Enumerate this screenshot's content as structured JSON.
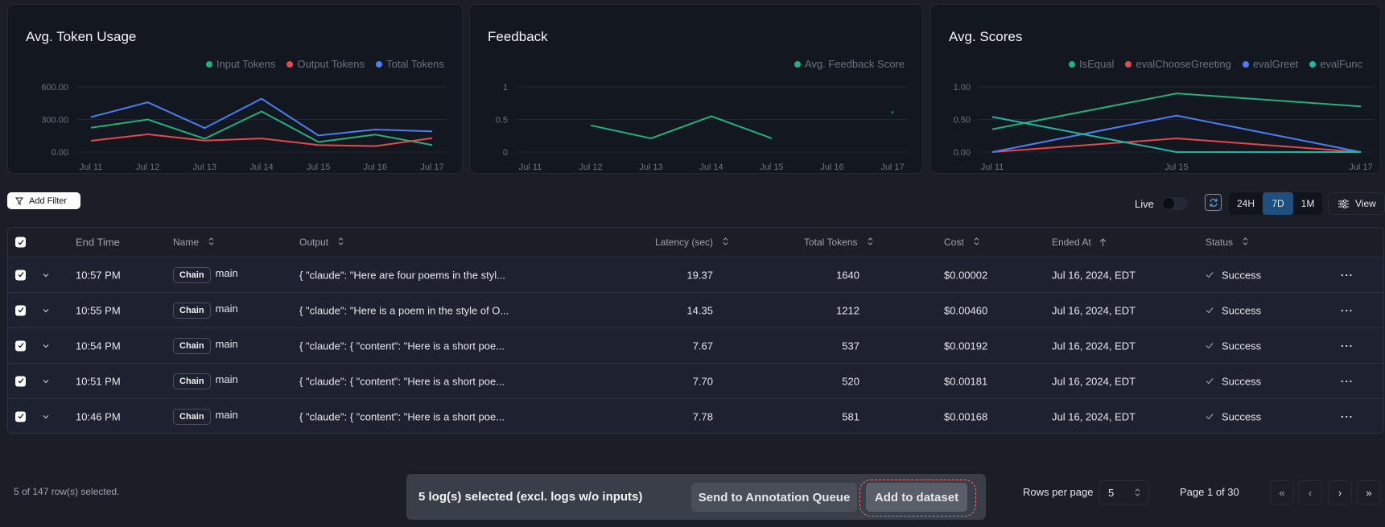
{
  "charts_panel": {
    "token_title": "Avg. Token Usage",
    "feedback_title": "Feedback",
    "scores_title": "Avg. Scores"
  },
  "chart_data": [
    {
      "type": "line",
      "title": "Avg. Token Usage",
      "categories": [
        "Jul 11",
        "Jul 12",
        "Jul 13",
        "Jul 14",
        "Jul 15",
        "Jul 16",
        "Jul 17"
      ],
      "yticks": [
        "0.00",
        "300.00",
        "600.00"
      ],
      "ylim": [
        0,
        600
      ],
      "legend": "top-right",
      "series": [
        {
          "name": "Input Tokens",
          "color": "#22b07d",
          "values": [
            224,
            300,
            123,
            374,
            93,
            161,
            65
          ]
        },
        {
          "name": "Output Tokens",
          "color": "#e5484d",
          "values": [
            104,
            164,
            106,
            125,
            65,
            55,
            128
          ]
        },
        {
          "name": "Total Tokens",
          "color": "#4c7ef3",
          "values": [
            322,
            458,
            221,
            491,
            153,
            207,
            191
          ]
        }
      ]
    },
    {
      "type": "line",
      "title": "Feedback",
      "categories": [
        "Jul 11",
        "Jul 12",
        "Jul 13",
        "Jul 14",
        "Jul 15",
        "Jul 16",
        "Jul 17"
      ],
      "yticks": [
        "0",
        "0.5",
        "1"
      ],
      "ylim": [
        0,
        1
      ],
      "legend": "top-right",
      "series": [
        {
          "name": "Avg. Feedback Score",
          "color": "#22b07d",
          "values": [
            null,
            0.41,
            0.21,
            0.55,
            0.21,
            null,
            0.61
          ]
        }
      ]
    },
    {
      "type": "line",
      "title": "Avg. Scores",
      "categories": [
        "Jul 11",
        "Jul 15",
        "Jul 17"
      ],
      "yticks": [
        "0.00",
        "0.50",
        "1.00"
      ],
      "ylim": [
        0,
        1
      ],
      "legend": "top-right",
      "series": [
        {
          "name": "IsEqual",
          "color": "#22b07d",
          "values": [
            0.35,
            0.9,
            0.7
          ]
        },
        {
          "name": "evalChooseGreeting",
          "color": "#e5484d",
          "values": [
            0,
            0.21,
            0
          ]
        },
        {
          "name": "evalGreet",
          "color": "#4c7ef3",
          "values": [
            0,
            0.56,
            0
          ]
        },
        {
          "name": "evalFunc",
          "color": "#1fb5a0",
          "values": [
            0.54,
            0,
            0
          ]
        }
      ]
    }
  ],
  "toolbar": {
    "add_filter": "Add Filter",
    "live_label": "Live",
    "live_on": false,
    "ranges": [
      "24H",
      "7D",
      "1M"
    ],
    "active_range": "7D",
    "view_label": "View"
  },
  "table": {
    "headers": {
      "end_time": "End Time",
      "name": "Name",
      "output": "Output",
      "latency": "Latency (sec)",
      "tokens": "Total Tokens",
      "cost": "Cost",
      "ended_at": "Ended At",
      "status": "Status"
    },
    "rows": [
      {
        "end_time": "10:57 PM",
        "type": "Chain",
        "name": "main",
        "output": "{ \"claude\": \"Here are four poems in the styl...",
        "latency": "19.37",
        "tokens": "1640",
        "cost": "$0.00002",
        "ended_at": "Jul 16, 2024, EDT",
        "status": "Success"
      },
      {
        "end_time": "10:55 PM",
        "type": "Chain",
        "name": "main",
        "output": "{ \"claude\": \"Here is a poem in the style of O...",
        "latency": "14.35",
        "tokens": "1212",
        "cost": "$0.00460",
        "ended_at": "Jul 16, 2024, EDT",
        "status": "Success"
      },
      {
        "end_time": "10:54 PM",
        "type": "Chain",
        "name": "main",
        "output": "{ \"claude\": { \"content\": \"Here is a short poe...",
        "latency": "7.67",
        "tokens": "537",
        "cost": "$0.00192",
        "ended_at": "Jul 16, 2024, EDT",
        "status": "Success"
      },
      {
        "end_time": "10:51 PM",
        "type": "Chain",
        "name": "main",
        "output": "{ \"claude\": { \"content\": \"Here is a short poe...",
        "latency": "7.70",
        "tokens": "520",
        "cost": "$0.00181",
        "ended_at": "Jul 16, 2024, EDT",
        "status": "Success"
      },
      {
        "end_time": "10:46 PM",
        "type": "Chain",
        "name": "main",
        "output": "{ \"claude\": { \"content\": \"Here is a short poe...",
        "latency": "7.78",
        "tokens": "581",
        "cost": "$0.00168",
        "ended_at": "Jul 16, 2024, EDT",
        "status": "Success"
      }
    ]
  },
  "footer": {
    "selected_count": "5 of 147 row(s) selected.",
    "selection_text": "5 log(s) selected (excl. logs w/o inputs)",
    "send_annotation": "Send to Annotation Queue",
    "add_dataset": "Add to dataset",
    "rows_per_page_label": "Rows per page",
    "rows_per_page": "5",
    "page_text": "Page 1 of 30",
    "nav": [
      "«",
      "‹",
      "›",
      "»"
    ]
  }
}
